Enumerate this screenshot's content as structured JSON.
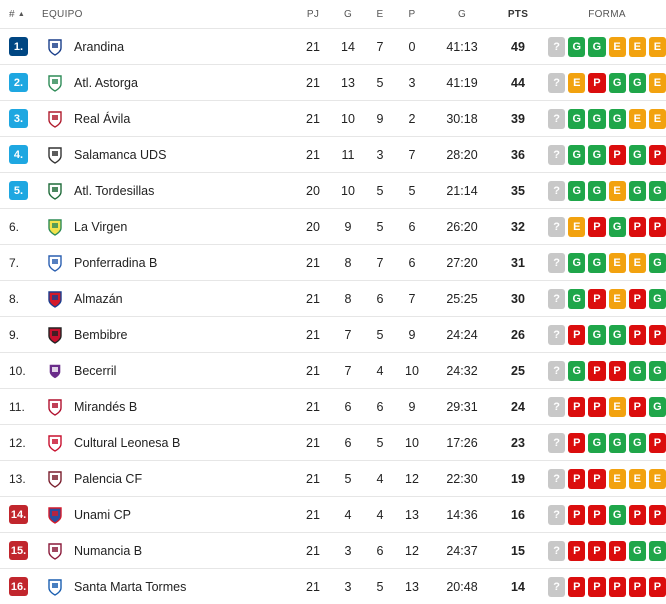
{
  "header": {
    "rank": "#",
    "sort_arrow": "▲",
    "team": "EQUIPO",
    "pj": "PJ",
    "g": "G",
    "e": "E",
    "p": "P",
    "goals": "G",
    "pts": "PTS",
    "form": "FORMA"
  },
  "colors": {
    "promotion": "#004682",
    "playoff": "#1ea7e1",
    "relegation": "#c1262d",
    "win": "#1fa64a",
    "draw": "#f2a20f",
    "loss": "#db0d0d",
    "unknown": "#c8c8c8"
  },
  "rows": [
    {
      "rank": "1.",
      "zone": "promotion",
      "team": "Arandina",
      "logo": "arandina-crest",
      "pj": "21",
      "g": "14",
      "e": "7",
      "p": "0",
      "goals": "41:13",
      "pts": "49",
      "form": [
        "?",
        "G",
        "G",
        "E",
        "E",
        "E"
      ]
    },
    {
      "rank": "2.",
      "zone": "playoff",
      "team": "Atl. Astorga",
      "logo": "astorga-crest",
      "pj": "21",
      "g": "13",
      "e": "5",
      "p": "3",
      "goals": "41:19",
      "pts": "44",
      "form": [
        "?",
        "E",
        "P",
        "G",
        "G",
        "E"
      ]
    },
    {
      "rank": "3.",
      "zone": "playoff",
      "team": "Real Ávila",
      "logo": "avila-crest",
      "pj": "21",
      "g": "10",
      "e": "9",
      "p": "2",
      "goals": "30:18",
      "pts": "39",
      "form": [
        "?",
        "G",
        "G",
        "G",
        "E",
        "E"
      ]
    },
    {
      "rank": "4.",
      "zone": "playoff",
      "team": "Salamanca UDS",
      "logo": "salamanca-crest",
      "pj": "21",
      "g": "11",
      "e": "3",
      "p": "7",
      "goals": "28:20",
      "pts": "36",
      "form": [
        "?",
        "G",
        "G",
        "P",
        "G",
        "P"
      ]
    },
    {
      "rank": "5.",
      "zone": "playoff",
      "team": "Atl. Tordesillas",
      "logo": "tordesillas-crest",
      "pj": "20",
      "g": "10",
      "e": "5",
      "p": "5",
      "goals": "21:14",
      "pts": "35",
      "form": [
        "?",
        "G",
        "G",
        "E",
        "G",
        "G"
      ]
    },
    {
      "rank": "6.",
      "zone": "",
      "team": "La Virgen",
      "logo": "lavirgen-crest",
      "pj": "20",
      "g": "9",
      "e": "5",
      "p": "6",
      "goals": "26:20",
      "pts": "32",
      "form": [
        "?",
        "E",
        "P",
        "G",
        "P",
        "P"
      ]
    },
    {
      "rank": "7.",
      "zone": "",
      "team": "Ponferradina B",
      "logo": "ponferradina-crest",
      "pj": "21",
      "g": "8",
      "e": "7",
      "p": "6",
      "goals": "27:20",
      "pts": "31",
      "form": [
        "?",
        "G",
        "G",
        "E",
        "E",
        "G"
      ]
    },
    {
      "rank": "8.",
      "zone": "",
      "team": "Almazán",
      "logo": "almazan-crest",
      "pj": "21",
      "g": "8",
      "e": "6",
      "p": "7",
      "goals": "25:25",
      "pts": "30",
      "form": [
        "?",
        "G",
        "P",
        "E",
        "P",
        "G"
      ]
    },
    {
      "rank": "9.",
      "zone": "",
      "team": "Bembibre",
      "logo": "bembibre-crest",
      "pj": "21",
      "g": "7",
      "e": "5",
      "p": "9",
      "goals": "24:24",
      "pts": "26",
      "form": [
        "?",
        "P",
        "G",
        "G",
        "P",
        "P"
      ]
    },
    {
      "rank": "10.",
      "zone": "",
      "team": "Becerril",
      "logo": "becerril-crest",
      "pj": "21",
      "g": "7",
      "e": "4",
      "p": "10",
      "goals": "24:32",
      "pts": "25",
      "form": [
        "?",
        "G",
        "P",
        "P",
        "G",
        "G"
      ]
    },
    {
      "rank": "11.",
      "zone": "",
      "team": "Mirandés B",
      "logo": "mirandes-crest",
      "pj": "21",
      "g": "6",
      "e": "6",
      "p": "9",
      "goals": "29:31",
      "pts": "24",
      "form": [
        "?",
        "P",
        "P",
        "E",
        "P",
        "G"
      ]
    },
    {
      "rank": "12.",
      "zone": "",
      "team": "Cultural Leonesa B",
      "logo": "cultural-crest",
      "pj": "21",
      "g": "6",
      "e": "5",
      "p": "10",
      "goals": "17:26",
      "pts": "23",
      "form": [
        "?",
        "P",
        "G",
        "G",
        "G",
        "P"
      ]
    },
    {
      "rank": "13.",
      "zone": "",
      "team": "Palencia CF",
      "logo": "palencia-crest",
      "pj": "21",
      "g": "5",
      "e": "4",
      "p": "12",
      "goals": "22:30",
      "pts": "19",
      "form": [
        "?",
        "P",
        "P",
        "E",
        "E",
        "E"
      ]
    },
    {
      "rank": "14.",
      "zone": "relegation",
      "team": "Unami CP",
      "logo": "unami-crest",
      "pj": "21",
      "g": "4",
      "e": "4",
      "p": "13",
      "goals": "14:36",
      "pts": "16",
      "form": [
        "?",
        "P",
        "P",
        "G",
        "P",
        "P"
      ]
    },
    {
      "rank": "15.",
      "zone": "relegation",
      "team": "Numancia B",
      "logo": "numancia-crest",
      "pj": "21",
      "g": "3",
      "e": "6",
      "p": "12",
      "goals": "24:37",
      "pts": "15",
      "form": [
        "?",
        "P",
        "P",
        "P",
        "G",
        "G"
      ]
    },
    {
      "rank": "16.",
      "zone": "relegation",
      "team": "Santa Marta Tormes",
      "logo": "santamarta-crest",
      "pj": "21",
      "g": "3",
      "e": "5",
      "p": "13",
      "goals": "20:48",
      "pts": "14",
      "form": [
        "?",
        "P",
        "P",
        "P",
        "P",
        "P"
      ]
    }
  ]
}
